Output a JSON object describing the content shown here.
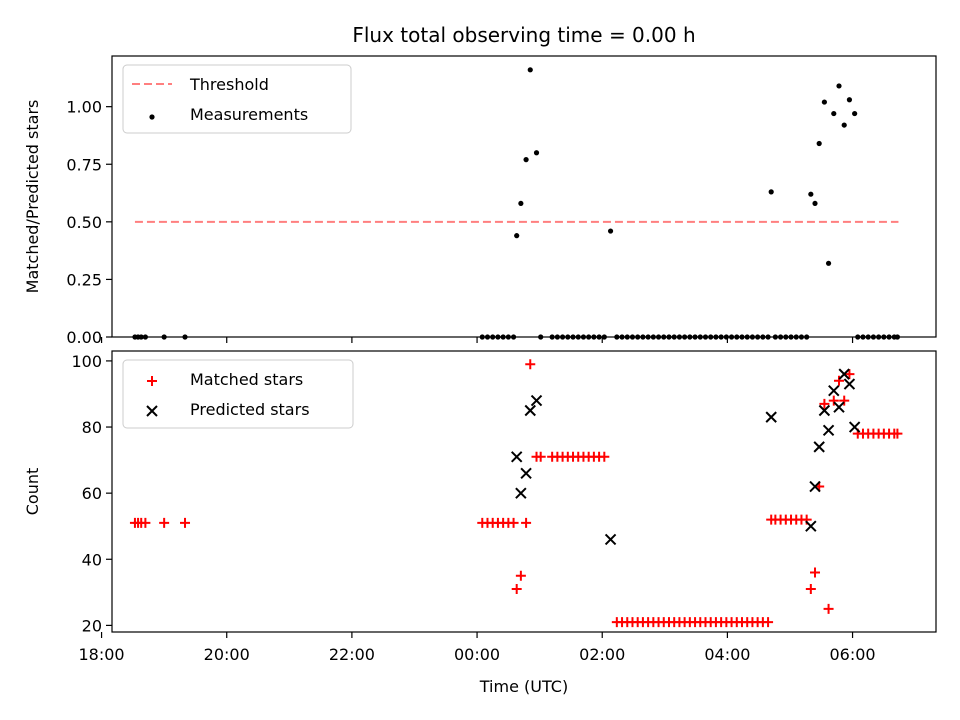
{
  "title": "Flux total observing time = 0.00 h",
  "xlabel": "Time (UTC)",
  "colors": {
    "threshold": "#ff7f7f",
    "matched": "#ff0000",
    "predicted": "#000000",
    "measurements": "#000000"
  },
  "chart_data": [
    {
      "type": "scatter",
      "panel": "top",
      "ylabel": "Matched/Predicted stars",
      "xlim": [
        "18:10",
        "07:20"
      ],
      "ylim": [
        0,
        1.22
      ],
      "yticks": [
        "0.00",
        "0.25",
        "0.50",
        "0.75",
        "1.00"
      ],
      "xticks": [
        "18:00",
        "20:00",
        "22:00",
        "00:00",
        "02:00",
        "04:00",
        "06:00"
      ],
      "legend": {
        "position": "top-left",
        "entries": [
          "Threshold",
          "Measurements"
        ]
      },
      "threshold": {
        "name": "Threshold",
        "y": 0.5,
        "x_range": [
          "18:32",
          "06:44"
        ]
      },
      "series": [
        {
          "name": "Measurements",
          "points": [
            [
              "18:32",
              0
            ],
            [
              "18:35",
              0
            ],
            [
              "18:38",
              0
            ],
            [
              "18:42",
              0
            ],
            [
              "19:00",
              0
            ],
            [
              "19:20",
              0
            ],
            [
              "00:05",
              0
            ],
            [
              "00:10",
              0
            ],
            [
              "00:15",
              0
            ],
            [
              "00:20",
              0
            ],
            [
              "00:25",
              0
            ],
            [
              "00:30",
              0
            ],
            [
              "00:35",
              0
            ],
            [
              "00:38",
              0.44
            ],
            [
              "00:42",
              0.58
            ],
            [
              "00:47",
              0.77
            ],
            [
              "00:51",
              1.16
            ],
            [
              "00:57",
              0.8
            ],
            [
              "01:01",
              0
            ],
            [
              "01:12",
              0
            ],
            [
              "01:17",
              0
            ],
            [
              "01:22",
              0
            ],
            [
              "01:27",
              0
            ],
            [
              "01:32",
              0
            ],
            [
              "01:37",
              0
            ],
            [
              "01:42",
              0
            ],
            [
              "01:47",
              0
            ],
            [
              "01:52",
              0
            ],
            [
              "01:57",
              0
            ],
            [
              "02:02",
              0
            ],
            [
              "02:08",
              0.46
            ],
            [
              "02:14",
              0
            ],
            [
              "02:19",
              0
            ],
            [
              "02:24",
              0
            ],
            [
              "02:29",
              0
            ],
            [
              "02:34",
              0
            ],
            [
              "02:39",
              0
            ],
            [
              "02:44",
              0
            ],
            [
              "02:49",
              0
            ],
            [
              "02:54",
              0
            ],
            [
              "02:59",
              0
            ],
            [
              "03:04",
              0
            ],
            [
              "03:09",
              0
            ],
            [
              "03:14",
              0
            ],
            [
              "03:19",
              0
            ],
            [
              "03:24",
              0
            ],
            [
              "03:29",
              0
            ],
            [
              "03:34",
              0
            ],
            [
              "03:39",
              0
            ],
            [
              "03:44",
              0
            ],
            [
              "03:49",
              0
            ],
            [
              "03:54",
              0
            ],
            [
              "03:59",
              0
            ],
            [
              "04:04",
              0
            ],
            [
              "04:09",
              0
            ],
            [
              "04:14",
              0
            ],
            [
              "04:19",
              0
            ],
            [
              "04:24",
              0
            ],
            [
              "04:29",
              0
            ],
            [
              "04:34",
              0
            ],
            [
              "04:39",
              0
            ],
            [
              "04:42",
              0.63
            ],
            [
              "04:46",
              0
            ],
            [
              "04:51",
              0
            ],
            [
              "04:56",
              0
            ],
            [
              "05:01",
              0
            ],
            [
              "05:06",
              0
            ],
            [
              "05:11",
              0
            ],
            [
              "05:16",
              0
            ],
            [
              "05:20",
              0.62
            ],
            [
              "05:24",
              0.58
            ],
            [
              "05:28",
              0.84
            ],
            [
              "05:33",
              1.02
            ],
            [
              "05:37",
              0.32
            ],
            [
              "05:42",
              0.97
            ],
            [
              "05:47",
              1.09
            ],
            [
              "05:52",
              0.92
            ],
            [
              "05:57",
              1.03
            ],
            [
              "06:02",
              0.97
            ],
            [
              "06:05",
              0
            ],
            [
              "06:10",
              0
            ],
            [
              "06:15",
              0
            ],
            [
              "06:20",
              0
            ],
            [
              "06:25",
              0
            ],
            [
              "06:30",
              0
            ],
            [
              "06:35",
              0
            ],
            [
              "06:40",
              0
            ],
            [
              "06:43",
              0
            ]
          ]
        }
      ]
    },
    {
      "type": "scatter",
      "panel": "bottom",
      "ylabel": "Count",
      "xlim": [
        "18:10",
        "07:20"
      ],
      "ylim": [
        18,
        103
      ],
      "yticks": [
        "20",
        "40",
        "60",
        "80",
        "100"
      ],
      "xticks": [
        "18:00",
        "20:00",
        "22:00",
        "00:00",
        "02:00",
        "04:00",
        "06:00"
      ],
      "legend": {
        "position": "top-left",
        "entries": [
          "Matched stars",
          "Predicted stars"
        ]
      },
      "series": [
        {
          "name": "Matched stars",
          "points": [
            [
              "18:32",
              51
            ],
            [
              "18:35",
              51
            ],
            [
              "18:38",
              51
            ],
            [
              "18:42",
              51
            ],
            [
              "19:00",
              51
            ],
            [
              "19:20",
              51
            ],
            [
              "00:05",
              51
            ],
            [
              "00:10",
              51
            ],
            [
              "00:15",
              51
            ],
            [
              "00:20",
              51
            ],
            [
              "00:25",
              51
            ],
            [
              "00:30",
              51
            ],
            [
              "00:35",
              51
            ],
            [
              "00:38",
              31
            ],
            [
              "00:42",
              35
            ],
            [
              "00:47",
              51
            ],
            [
              "00:51",
              99
            ],
            [
              "00:57",
              71
            ],
            [
              "01:01",
              71
            ],
            [
              "01:12",
              71
            ],
            [
              "01:17",
              71
            ],
            [
              "01:22",
              71
            ],
            [
              "01:27",
              71
            ],
            [
              "01:32",
              71
            ],
            [
              "01:37",
              71
            ],
            [
              "01:42",
              71
            ],
            [
              "01:47",
              71
            ],
            [
              "01:52",
              71
            ],
            [
              "01:57",
              71
            ],
            [
              "02:02",
              71
            ],
            [
              "02:14",
              21
            ],
            [
              "02:19",
              21
            ],
            [
              "02:24",
              21
            ],
            [
              "02:29",
              21
            ],
            [
              "02:34",
              21
            ],
            [
              "02:39",
              21
            ],
            [
              "02:44",
              21
            ],
            [
              "02:49",
              21
            ],
            [
              "02:54",
              21
            ],
            [
              "02:59",
              21
            ],
            [
              "03:04",
              21
            ],
            [
              "03:09",
              21
            ],
            [
              "03:14",
              21
            ],
            [
              "03:19",
              21
            ],
            [
              "03:24",
              21
            ],
            [
              "03:29",
              21
            ],
            [
              "03:34",
              21
            ],
            [
              "03:39",
              21
            ],
            [
              "03:44",
              21
            ],
            [
              "03:49",
              21
            ],
            [
              "03:54",
              21
            ],
            [
              "03:59",
              21
            ],
            [
              "04:04",
              21
            ],
            [
              "04:09",
              21
            ],
            [
              "04:14",
              21
            ],
            [
              "04:19",
              21
            ],
            [
              "04:24",
              21
            ],
            [
              "04:29",
              21
            ],
            [
              "04:34",
              21
            ],
            [
              "04:39",
              21
            ],
            [
              "04:42",
              52
            ],
            [
              "04:46",
              52
            ],
            [
              "04:51",
              52
            ],
            [
              "04:56",
              52
            ],
            [
              "05:01",
              52
            ],
            [
              "05:06",
              52
            ],
            [
              "05:11",
              52
            ],
            [
              "05:16",
              52
            ],
            [
              "05:20",
              31
            ],
            [
              "05:24",
              36
            ],
            [
              "05:28",
              62
            ],
            [
              "05:33",
              87
            ],
            [
              "05:37",
              25
            ],
            [
              "05:42",
              88
            ],
            [
              "05:47",
              94
            ],
            [
              "05:52",
              88
            ],
            [
              "05:57",
              96
            ],
            [
              "06:05",
              78
            ],
            [
              "06:10",
              78
            ],
            [
              "06:15",
              78
            ],
            [
              "06:20",
              78
            ],
            [
              "06:25",
              78
            ],
            [
              "06:30",
              78
            ],
            [
              "06:35",
              78
            ],
            [
              "06:40",
              78
            ],
            [
              "06:43",
              78
            ]
          ]
        },
        {
          "name": "Predicted stars",
          "points": [
            [
              "00:38",
              71
            ],
            [
              "00:42",
              60
            ],
            [
              "00:47",
              66
            ],
            [
              "00:51",
              85
            ],
            [
              "00:57",
              88
            ],
            [
              "02:08",
              46
            ],
            [
              "04:42",
              83
            ],
            [
              "05:20",
              50
            ],
            [
              "05:24",
              62
            ],
            [
              "05:28",
              74
            ],
            [
              "05:33",
              85
            ],
            [
              "05:37",
              79
            ],
            [
              "05:42",
              91
            ],
            [
              "05:47",
              86
            ],
            [
              "05:52",
              96
            ],
            [
              "05:57",
              93
            ],
            [
              "06:02",
              80
            ]
          ]
        }
      ]
    }
  ]
}
